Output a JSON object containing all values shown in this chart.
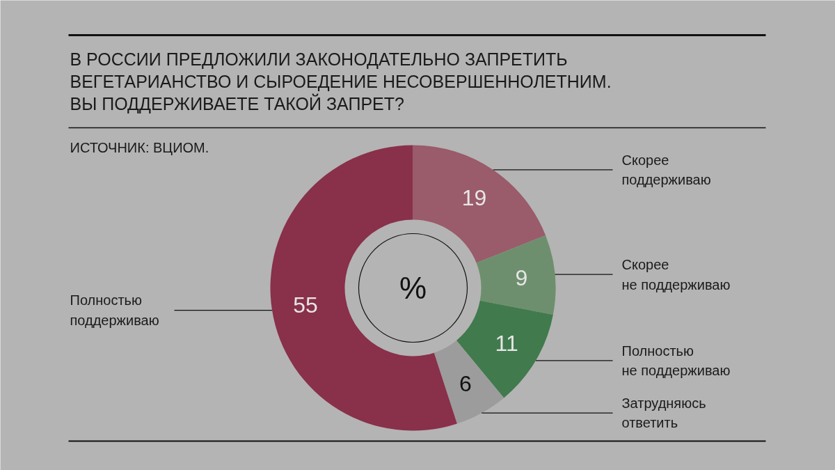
{
  "chart_data": {
    "type": "donut",
    "title": "В РОССИИ ПРЕДЛОЖИЛИ ЗАКОНОДАТЕЛЬНО ЗАПРЕТИТЬ\nВЕГЕТАРИАНСТВО И СЫРОЕДЕНИЕ НЕСОВЕРШЕННОЛЕТНИМ.\nВЫ ПОДДЕРЖИВАЕТЕ ТАКОЙ ЗАПРЕТ?",
    "subtitle": "ИСТОЧНИК: ВЦИОМ.",
    "annotations": [
      "%"
    ],
    "categories": [
      "Скорее\nподдерживаю",
      "Скорее\nне поддерживаю",
      "Полностью\nне поддерживаю",
      "Затрудняюсь\nответить",
      "Полностью\nподдерживаю"
    ],
    "values": [
      19,
      9,
      11,
      6,
      55
    ],
    "colors": [
      "#9a5b6a",
      "#6e8f6e",
      "#417a4c",
      "#9c9c9c",
      "#89304a"
    ],
    "data_labels": true
  }
}
